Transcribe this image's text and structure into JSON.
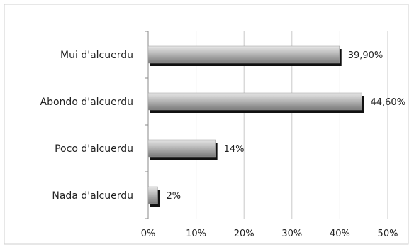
{
  "chart_data": {
    "type": "bar",
    "orientation": "horizontal",
    "categories": [
      "Mui d'alcuerdu",
      "Abondo d'alcuerdu",
      "Poco d'alcuerdu",
      "Nada d'alcuerdu"
    ],
    "values": [
      39.9,
      44.6,
      14,
      2
    ],
    "data_labels": [
      "39,90%",
      "44,60%",
      "14%",
      "2%"
    ],
    "xlim": [
      0,
      50
    ],
    "x_ticks": [
      0,
      10,
      20,
      30,
      40,
      50
    ],
    "x_tick_labels": [
      "0%",
      "10%",
      "20%",
      "30%",
      "40%",
      "50%"
    ],
    "title": "",
    "xlabel": "",
    "ylabel": "",
    "grid": "vertical",
    "legend": "none",
    "colors": {
      "bar_light": "#e6e6e6",
      "bar_dark": "#7a7a7a",
      "bar_shadow": "#111111",
      "grid": "#c9c9c9",
      "frame": "#cfcfcf"
    }
  }
}
